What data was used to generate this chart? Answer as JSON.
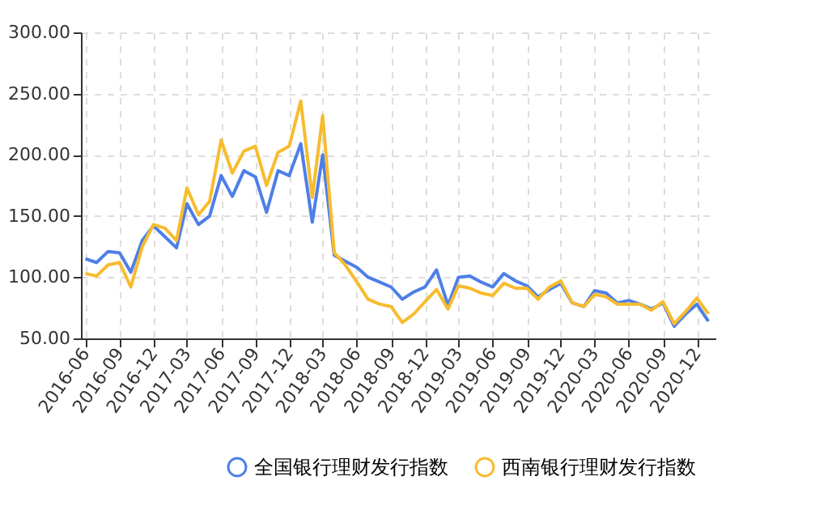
{
  "chart_data": {
    "type": "line",
    "x": [
      "2016-06",
      "2016-07",
      "2016-08",
      "2016-09",
      "2016-10",
      "2016-11",
      "2016-12",
      "2017-01",
      "2017-02",
      "2017-03",
      "2017-04",
      "2017-05",
      "2017-06",
      "2017-07",
      "2017-08",
      "2017-09",
      "2017-10",
      "2017-11",
      "2017-12",
      "2018-01",
      "2018-02",
      "2018-03",
      "2018-04",
      "2018-05",
      "2018-06",
      "2018-07",
      "2018-08",
      "2018-09",
      "2018-10",
      "2018-11",
      "2018-12",
      "2019-01",
      "2019-02",
      "2019-03",
      "2019-04",
      "2019-05",
      "2019-06",
      "2019-07",
      "2019-08",
      "2019-09",
      "2019-10",
      "2019-11",
      "2019-12",
      "2020-01",
      "2020-02",
      "2020-03",
      "2020-04",
      "2020-05",
      "2020-06",
      "2020-07",
      "2020-08",
      "2020-09",
      "2020-10",
      "2020-11",
      "2020-12",
      "2021-01"
    ],
    "series": [
      {
        "name": "全国银行理财发行指数",
        "color": "#4e7fe8",
        "values": [
          115,
          112,
          121,
          120,
          104,
          130,
          142,
          133,
          124,
          160,
          143,
          150,
          183,
          166,
          187,
          182,
          153,
          187,
          183,
          209,
          145,
          200,
          118,
          113,
          108,
          100,
          96,
          92,
          82,
          88,
          92,
          106,
          77,
          100,
          101,
          96,
          92,
          103,
          97,
          93,
          84,
          90,
          95,
          79,
          76,
          89,
          87,
          79,
          81,
          78,
          74,
          79,
          60,
          70,
          78,
          64
        ]
      },
      {
        "name": "西南银行理财发行指数",
        "color": "#f7bc2e",
        "values": [
          103,
          101,
          110,
          112,
          92,
          125,
          143,
          140,
          130,
          173,
          151,
          162,
          212,
          185,
          203,
          207,
          175,
          202,
          207,
          244,
          165,
          232,
          120,
          110,
          96,
          82,
          78,
          76,
          63,
          70,
          80,
          90,
          74,
          93,
          91,
          87,
          85,
          95,
          91,
          91,
          82,
          92,
          97,
          79,
          76,
          86,
          84,
          78,
          78,
          78,
          73,
          80,
          62,
          72,
          83,
          70
        ]
      }
    ],
    "xlim": [
      "2016-05-20",
      "2021-01-20"
    ],
    "xticks": [
      "2016-06",
      "2016-09",
      "2016-12",
      "2017-03",
      "2017-06",
      "2017-09",
      "2017-12",
      "2018-03",
      "2018-06",
      "2018-09",
      "2018-12",
      "2019-03",
      "2019-06",
      "2019-09",
      "2019-12",
      "2020-03",
      "2020-06",
      "2020-09",
      "2020-12"
    ],
    "ylim": [
      50,
      300
    ],
    "yticks": [
      {
        "value": 50,
        "label": "50.00"
      },
      {
        "value": 100,
        "label": "100.00"
      },
      {
        "value": 150,
        "label": "150.00"
      },
      {
        "value": 200,
        "label": "200.00"
      },
      {
        "value": 250,
        "label": "250.00"
      },
      {
        "value": 300,
        "label": "300.00"
      }
    ],
    "grid": true,
    "legend": "bottom"
  }
}
